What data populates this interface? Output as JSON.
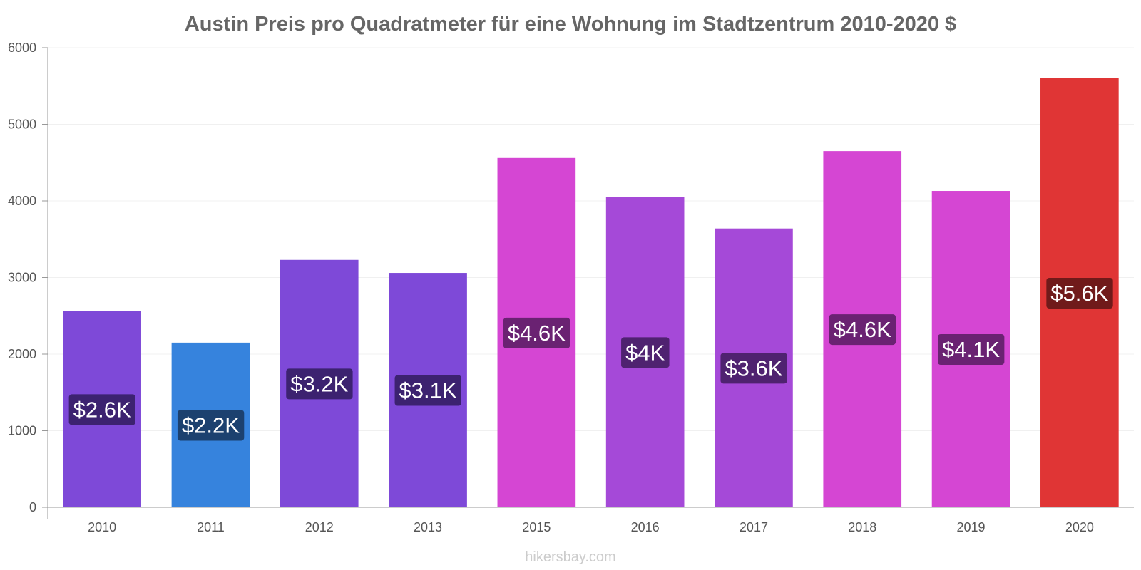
{
  "chart_data": {
    "type": "bar",
    "title": "Austin Preis pro Quadratmeter für eine Wohnung im Stadtzentrum 2010-2020 $",
    "xlabel": "",
    "ylabel": "",
    "ylim": [
      0,
      6000
    ],
    "yticks": [
      0,
      1000,
      2000,
      3000,
      4000,
      5000,
      6000
    ],
    "grid": true,
    "categories": [
      "2010",
      "2011",
      "2012",
      "2013",
      "2015",
      "2016",
      "2017",
      "2018",
      "2019",
      "2020"
    ],
    "values": [
      2560,
      2150,
      3230,
      3060,
      4560,
      4050,
      3640,
      4650,
      4130,
      5600
    ],
    "labels": [
      "$2.6K",
      "$2.2K",
      "$3.2K",
      "$3.1K",
      "$4.6K",
      "$4K",
      "$3.6K",
      "$4.6K",
      "$4.1K",
      "$5.6K"
    ],
    "bar_colors": [
      "#7e49d8",
      "#3683dd",
      "#7e49d8",
      "#7e49d8",
      "#d546d3",
      "#a549d8",
      "#a549d8",
      "#d546d3",
      "#d546d3",
      "#e03535"
    ],
    "label_colors": [
      "#3c2270",
      "#1c416f",
      "#3c2270",
      "#3c2270",
      "#6a2272",
      "#4f2270",
      "#4f2270",
      "#6a2272",
      "#6a2272",
      "#701a1a"
    ]
  },
  "watermark": "hikersbay.com",
  "colors": {
    "title": "#666666",
    "axis": "#999999",
    "grid": "#f0f0f0",
    "tick_text": "#555555",
    "watermark": "#cccccc"
  }
}
